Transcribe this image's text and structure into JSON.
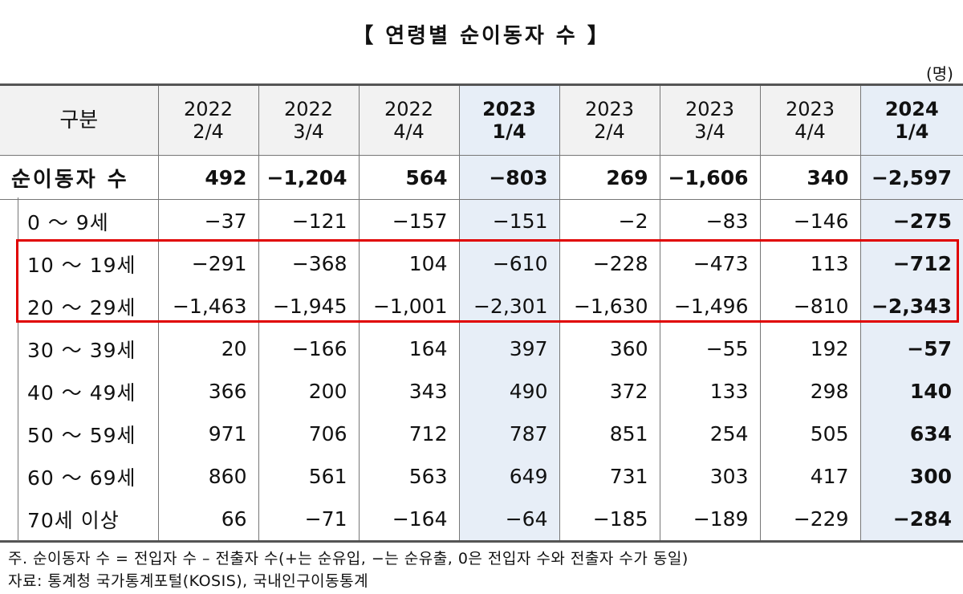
{
  "title": "【 연령별 순이동자 수 】",
  "unit": "(명)",
  "columns": [
    {
      "year": "2022",
      "quarter": "2/4"
    },
    {
      "year": "2022",
      "quarter": "3/4"
    },
    {
      "year": "2022",
      "quarter": "4/4"
    },
    {
      "year": "2023",
      "quarter": "1/4"
    },
    {
      "year": "2023",
      "quarter": "2/4"
    },
    {
      "year": "2023",
      "quarter": "3/4"
    },
    {
      "year": "2023",
      "quarter": "4/4"
    },
    {
      "year": "2024",
      "quarter": "1/4"
    }
  ],
  "corner_label": "구분",
  "rows": [
    {
      "label": "순이동자 수",
      "values": [
        "492",
        "−1,204",
        "564",
        "−803",
        "269",
        "−1,606",
        "340",
        "−2,597"
      ]
    },
    {
      "label": "0 ～ 9세",
      "values": [
        "−37",
        "−121",
        "−157",
        "−151",
        "−2",
        "−83",
        "−146",
        "−275"
      ]
    },
    {
      "label": "10 ～ 19세",
      "values": [
        "−291",
        "−368",
        "104",
        "−610",
        "−228",
        "−473",
        "113",
        "−712"
      ]
    },
    {
      "label": "20 ～ 29세",
      "values": [
        "−1,463",
        "−1,945",
        "−1,001",
        "−2,301",
        "−1,630",
        "−1,496",
        "−810",
        "−2,343"
      ]
    },
    {
      "label": "30 ～ 39세",
      "values": [
        "20",
        "−166",
        "164",
        "397",
        "360",
        "−55",
        "192",
        "−57"
      ]
    },
    {
      "label": "40 ～ 49세",
      "values": [
        "366",
        "200",
        "343",
        "490",
        "372",
        "133",
        "298",
        "140"
      ]
    },
    {
      "label": "50 ～ 59세",
      "values": [
        "971",
        "706",
        "712",
        "787",
        "851",
        "254",
        "505",
        "634"
      ]
    },
    {
      "label": "60 ～ 69세",
      "values": [
        "860",
        "561",
        "563",
        "649",
        "731",
        "303",
        "417",
        "300"
      ]
    },
    {
      "label": "70세 이상",
      "values": [
        "66",
        "−71",
        "−164",
        "−64",
        "−185",
        "−189",
        "−229",
        "−284"
      ]
    }
  ],
  "notes": [
    "주. 순이동자 수 = 전입자 수  –  전출자 수(+는 순유입, −는 순유출, 0은 전입자 수와 전출자 수가 동일)",
    "자료: 통계청 국가통계포털(KOSIS), 국내인구이동통계"
  ],
  "colors": {
    "highlight_column": "#e7eef7",
    "header_bg": "#f2f2f2",
    "box": "#e00000"
  }
}
